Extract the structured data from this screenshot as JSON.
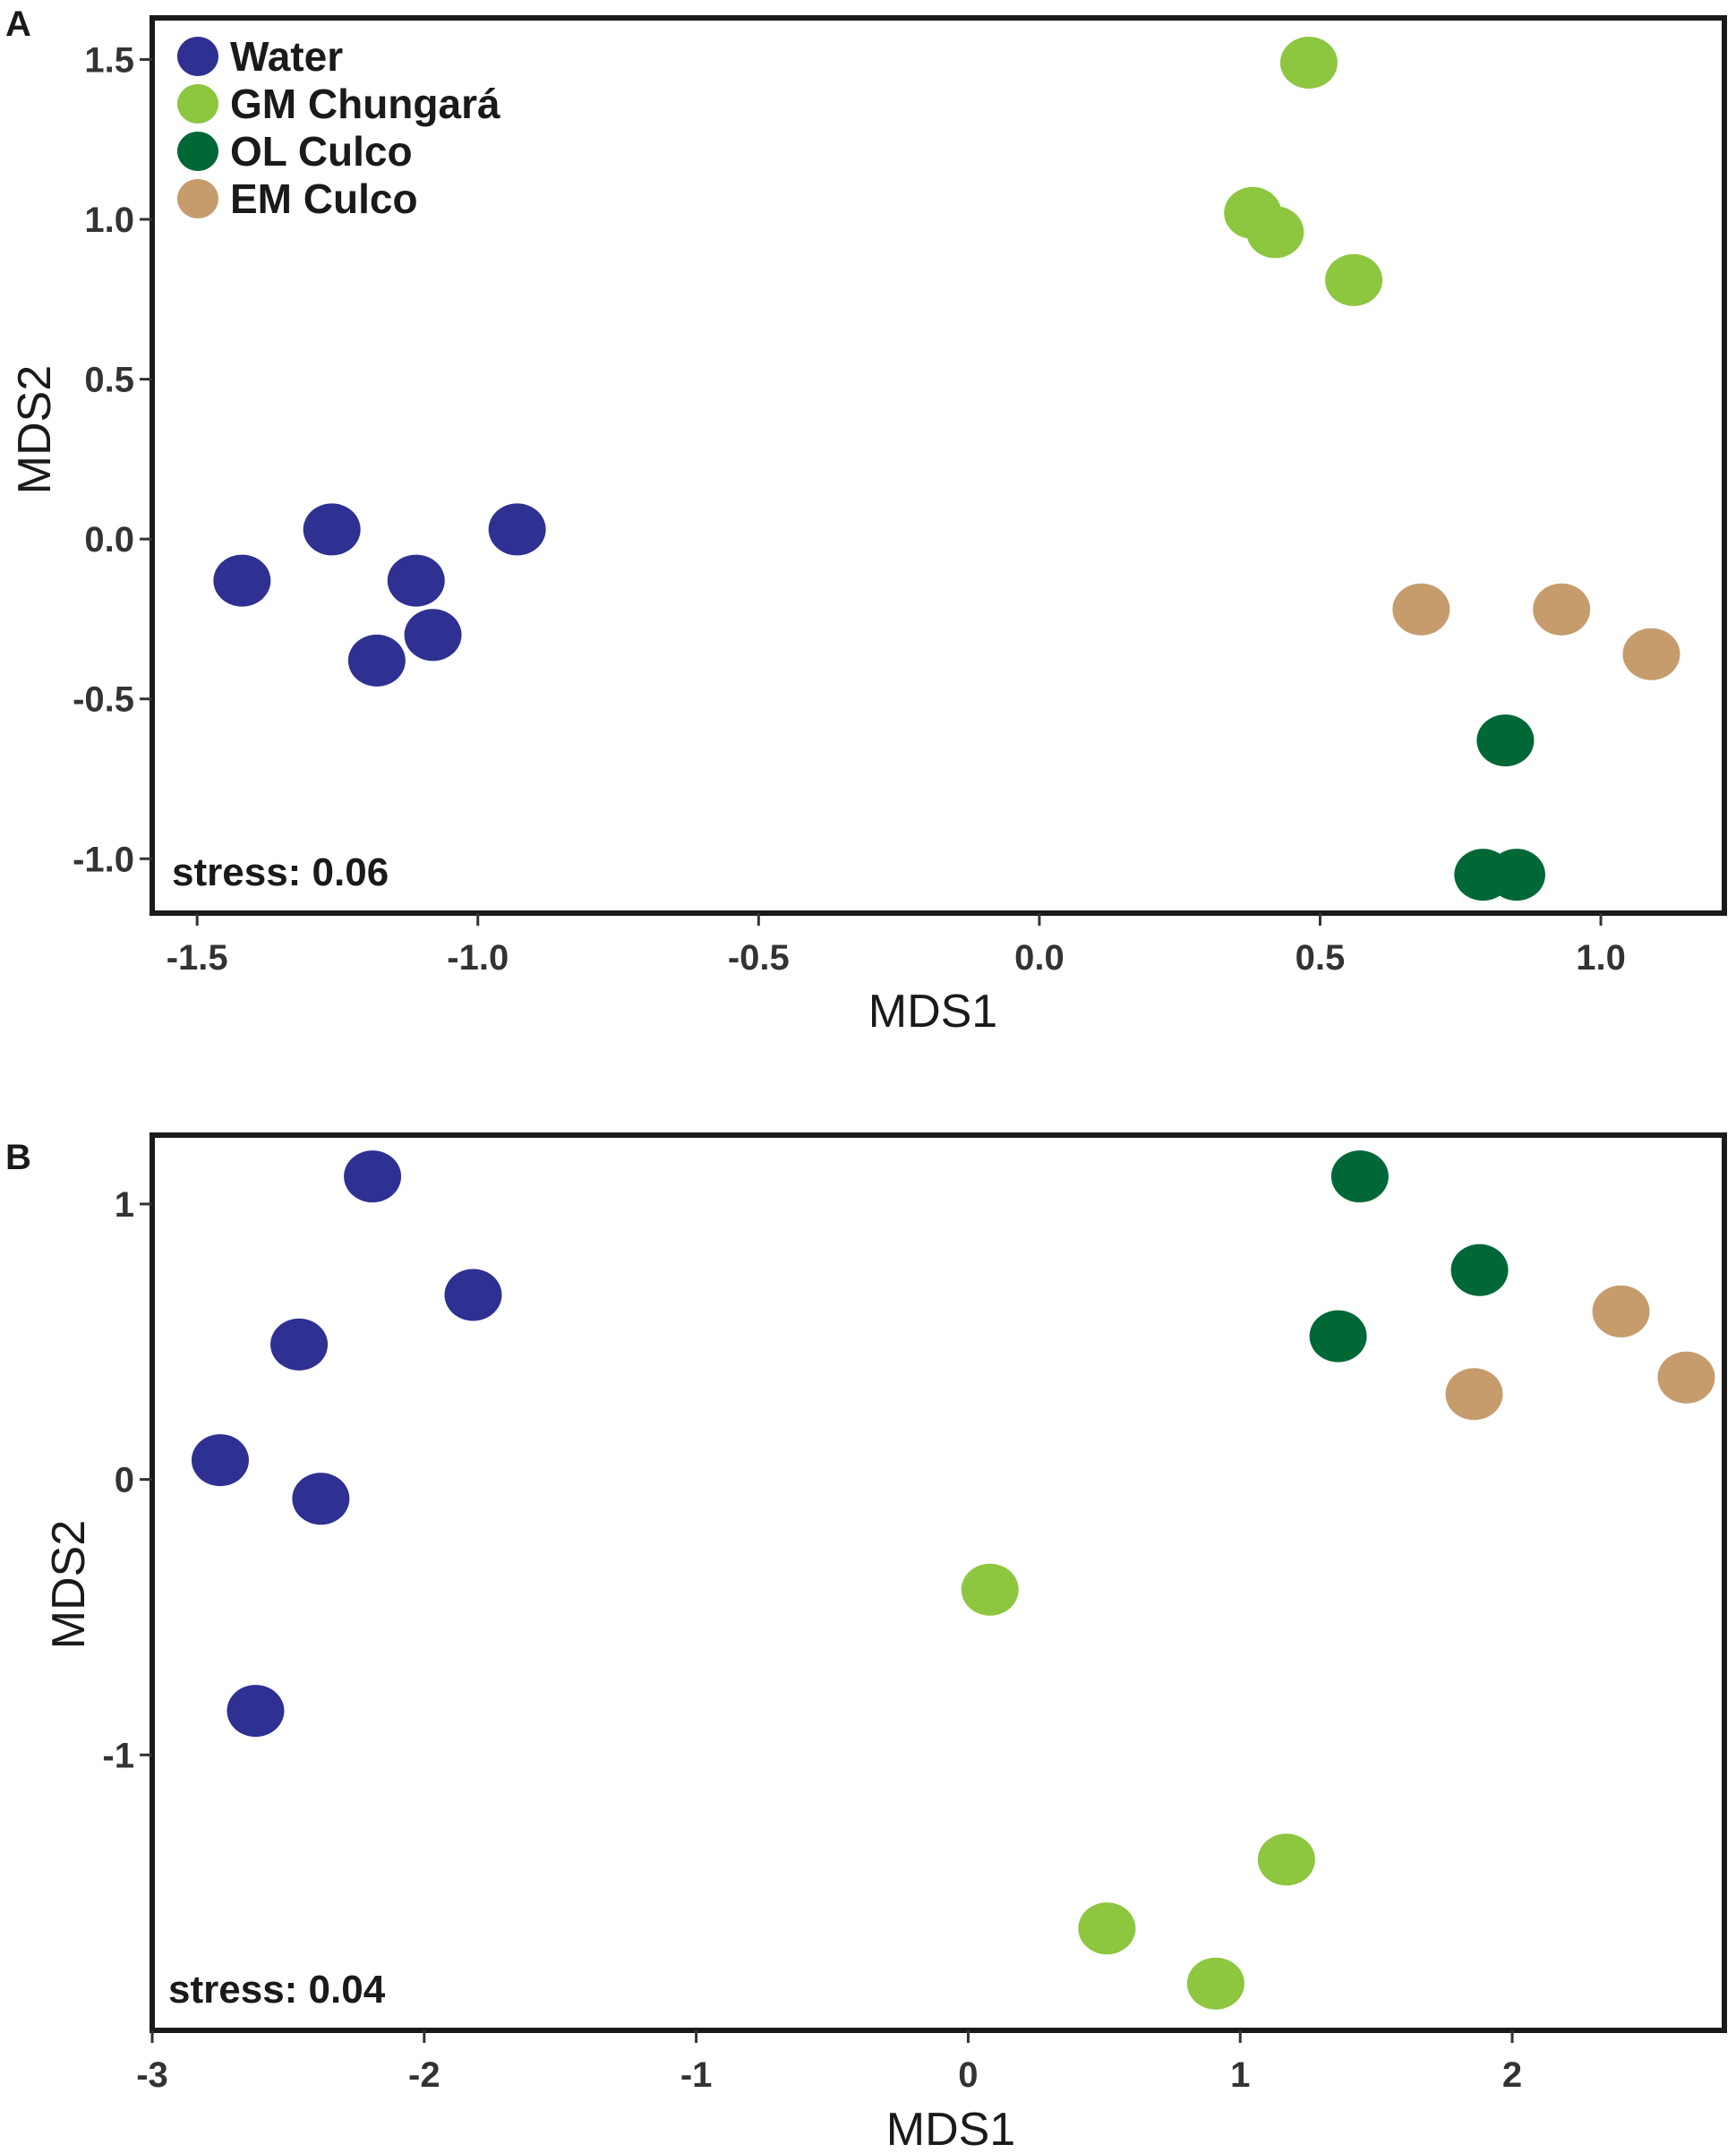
{
  "colors": {
    "Water": "#2e3192",
    "GM Chungará": "#8dc63f",
    "OL Culco": "#006837",
    "EM Culco": "#c69c6d",
    "frame": "#1a1a1a"
  },
  "chart_data": [
    {
      "type": "scatter",
      "panel": "A",
      "xlabel": "MDS1",
      "ylabel": "MDS2",
      "xlim": [
        -1.58,
        1.22
      ],
      "ylim": [
        -1.17,
        1.63
      ],
      "xticks": [
        -1.5,
        -1.0,
        -0.5,
        0.0,
        0.5,
        1.0
      ],
      "xtick_labels": [
        "-1.5",
        "-1.0",
        "-0.5",
        "0.0",
        "0.5",
        "1.0"
      ],
      "yticks": [
        -1.0,
        -0.5,
        0.0,
        0.5,
        1.0,
        1.5
      ],
      "ytick_labels": [
        "-1.0",
        "-0.5",
        "0.0",
        "0.5",
        "1.0",
        "1.5"
      ],
      "grid": false,
      "legend_position": "top-left",
      "legend": [
        "Water",
        "GM Chungará",
        "OL Culco",
        "EM Culco"
      ],
      "annotation": "stress: 0.06",
      "series": [
        {
          "name": "Water",
          "points": [
            [
              -1.42,
              -0.13
            ],
            [
              -1.26,
              0.03
            ],
            [
              -1.11,
              -0.13
            ],
            [
              -1.08,
              -0.3
            ],
            [
              -1.18,
              -0.38
            ],
            [
              -0.93,
              0.03
            ]
          ]
        },
        {
          "name": "GM Chungará",
          "points": [
            [
              0.48,
              1.49
            ],
            [
              0.38,
              1.02
            ],
            [
              0.42,
              0.96
            ],
            [
              0.56,
              0.81
            ]
          ]
        },
        {
          "name": "OL Culco",
          "points": [
            [
              0.83,
              -0.63
            ],
            [
              0.79,
              -1.05
            ],
            [
              0.85,
              -1.05
            ]
          ]
        },
        {
          "name": "EM Culco",
          "points": [
            [
              0.68,
              -0.22
            ],
            [
              0.93,
              -0.22
            ],
            [
              1.09,
              -0.36
            ]
          ]
        }
      ]
    },
    {
      "type": "scatter",
      "panel": "B",
      "xlabel": "MDS1",
      "ylabel": "MDS2",
      "xlim": [
        -3.0,
        2.78
      ],
      "ylim": [
        -2.0,
        1.25
      ],
      "xticks": [
        -3,
        -2,
        -1,
        0,
        1,
        2
      ],
      "xtick_labels": [
        "-3",
        "-2",
        "-1",
        "0",
        "1",
        "2"
      ],
      "yticks": [
        -1,
        0,
        1
      ],
      "ytick_labels": [
        "-1",
        "0",
        "1"
      ],
      "grid": false,
      "annotation": "stress: 0.04",
      "series": [
        {
          "name": "Water",
          "points": [
            [
              -2.19,
              1.1
            ],
            [
              -1.82,
              0.67
            ],
            [
              -2.46,
              0.49
            ],
            [
              -2.75,
              0.07
            ],
            [
              -2.38,
              -0.07
            ],
            [
              -2.62,
              -0.84
            ]
          ]
        },
        {
          "name": "GM Chungará",
          "points": [
            [
              0.08,
              -0.4
            ],
            [
              1.17,
              -1.38
            ],
            [
              0.51,
              -1.63
            ],
            [
              0.91,
              -1.83
            ]
          ]
        },
        {
          "name": "OL Culco",
          "points": [
            [
              1.44,
              1.1
            ],
            [
              1.88,
              0.76
            ],
            [
              1.36,
              0.52
            ]
          ]
        },
        {
          "name": "EM Culco",
          "points": [
            [
              2.4,
              0.61
            ],
            [
              1.86,
              0.31
            ],
            [
              2.64,
              0.37
            ]
          ]
        }
      ]
    }
  ]
}
